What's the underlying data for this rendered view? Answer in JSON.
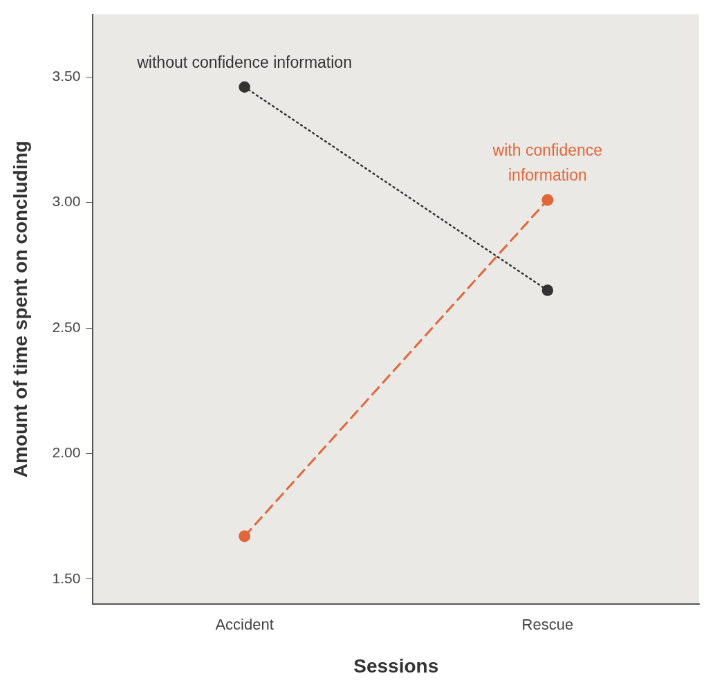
{
  "chart_data": {
    "type": "line",
    "xlabel": "Sessions",
    "ylabel": "Amount of time spent on concluding",
    "categories": [
      "Accident",
      "Rescue"
    ],
    "series": [
      {
        "name": "without confidence information",
        "color": "#333333",
        "values": [
          3.46,
          2.65
        ],
        "line_style": "dotted"
      },
      {
        "name": "with confidence information",
        "color": "#e0673a",
        "values": [
          1.67,
          3.01
        ],
        "line_style": "dashed"
      }
    ],
    "ylim": [
      1.4,
      3.75
    ],
    "yticks": [
      {
        "value": 1.5,
        "label": "1.50"
      },
      {
        "value": 2,
        "label": "2.00"
      },
      {
        "value": 2.5,
        "label": "2.50"
      },
      {
        "value": 3,
        "label": "3.00"
      },
      {
        "value": 3.5,
        "label": "3.50"
      }
    ],
    "grid": false,
    "legend": false,
    "marker": "circle"
  }
}
